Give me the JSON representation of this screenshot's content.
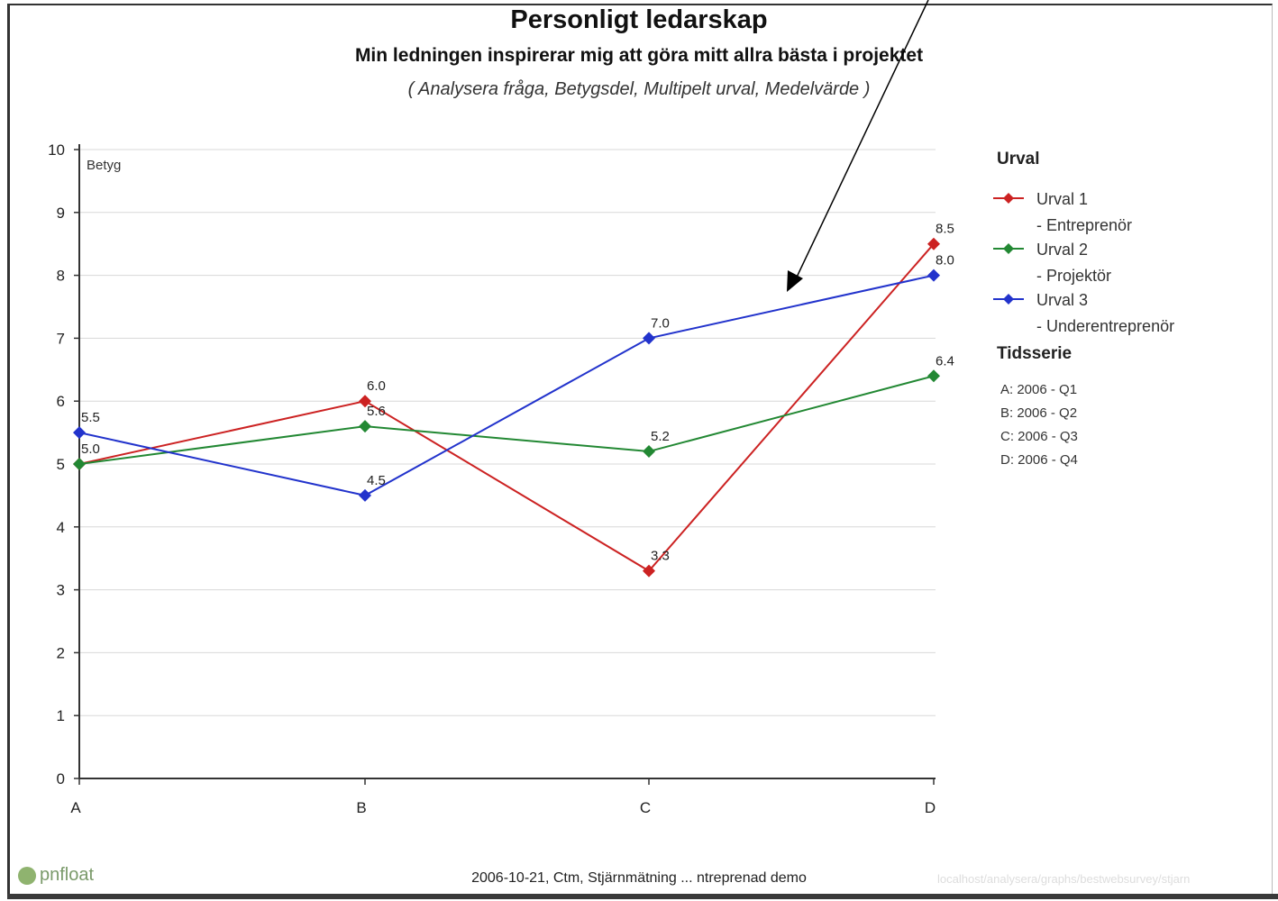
{
  "chart_data": {
    "type": "line",
    "title": "Personligt ledarskap",
    "subtitle": "Min ledningen inspirerar mig att göra mitt allra bästa i projektet",
    "note": "( Analysera fråga, Betygsdel, Multipelt urval, Medelvärde )",
    "ylabel": "Betyg",
    "xlabel": "",
    "categories": [
      "A",
      "B",
      "C",
      "D"
    ],
    "ylim": [
      0,
      10
    ],
    "yticks": [
      "0",
      "1",
      "2",
      "3",
      "4",
      "5",
      "6",
      "7",
      "8",
      "9",
      "10"
    ],
    "grid": true,
    "legend_position": "right",
    "legend_title": "Urval",
    "series": [
      {
        "name": "Urval 1",
        "name_sub": "- Entreprenör",
        "color": "#cc2222",
        "values": [
          5.0,
          6.0,
          3.3,
          8.5
        ],
        "labels": [
          "5.0",
          "6.0",
          "3.3",
          "8.5"
        ]
      },
      {
        "name": "Urval 2",
        "name_sub": "- Projektör",
        "color": "#228833",
        "values": [
          5.0,
          5.6,
          5.2,
          6.4
        ],
        "labels": [
          "",
          "5.6",
          "5.2",
          "6.4"
        ]
      },
      {
        "name": "Urval 3",
        "name_sub": "- Underentreprenör",
        "color": "#2233cc",
        "values": [
          5.5,
          4.5,
          7.0,
          8.0
        ],
        "labels": [
          "5.5",
          "4.5",
          "7.0",
          "8.0"
        ]
      }
    ],
    "timeseries_title": "Tidsserie",
    "timeseries": [
      "A: 2006 - Q1",
      "B: 2006 - Q2",
      "C: 2006 - Q3",
      "D: 2006 - Q4"
    ]
  },
  "footer": {
    "logo": "pnfloat",
    "text": "2006-10-21, Ctm, Stjärnmätning ... ntreprenad demo",
    "url": "localhost/analysera/graphs/bestwebsurvey/stjarn"
  },
  "colors": {
    "axis": "#333333",
    "grid": "#d8d8d8",
    "arrow": "#000000"
  }
}
